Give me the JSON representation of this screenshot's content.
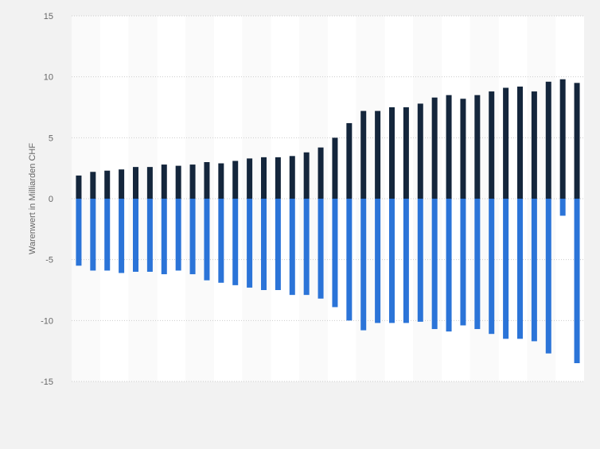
{
  "colors": {
    "background": "#f2f2f2",
    "band_light": "#fafafa",
    "band_white": "#ffffff",
    "grid": "#cccccc",
    "tick_text": "#666666",
    "series_positive": "#14263c",
    "series_negative": "#2b74d8"
  },
  "chart_data": {
    "type": "bar",
    "title": "",
    "xlabel": "",
    "ylabel": "Warenwert in Milliarden CHF",
    "ylim": [
      -15,
      15
    ],
    "yticks": [
      15,
      10,
      5,
      0,
      -5,
      -10,
      -15
    ],
    "grid": true,
    "legend": "none",
    "category_count": 36,
    "series": [
      {
        "values": [
          1.9,
          2.2,
          2.3,
          2.4,
          2.6,
          2.6,
          2.8,
          2.7,
          2.8,
          3.0,
          2.9,
          3.1,
          3.3,
          3.4,
          3.4,
          3.5,
          3.8,
          4.2,
          5.0,
          6.2,
          7.2,
          7.2,
          7.5,
          7.5,
          7.8,
          8.3,
          8.5,
          8.2,
          8.5,
          8.8,
          9.1,
          9.2,
          8.8,
          9.6,
          9.8,
          9.5
        ]
      },
      {
        "values": [
          -5.5,
          -5.9,
          -5.9,
          -6.1,
          -6.0,
          -6.0,
          -6.2,
          -5.9,
          -6.2,
          -6.7,
          -6.9,
          -7.1,
          -7.3,
          -7.5,
          -7.5,
          -7.9,
          -7.9,
          -8.2,
          -8.9,
          -10.0,
          -10.8,
          -10.2,
          -10.2,
          -10.2,
          -10.1,
          -10.7,
          -10.9,
          -10.4,
          -10.7,
          -11.1,
          -11.5,
          -11.5,
          -11.7,
          -12.7,
          -1.4,
          -13.5
        ]
      }
    ]
  }
}
